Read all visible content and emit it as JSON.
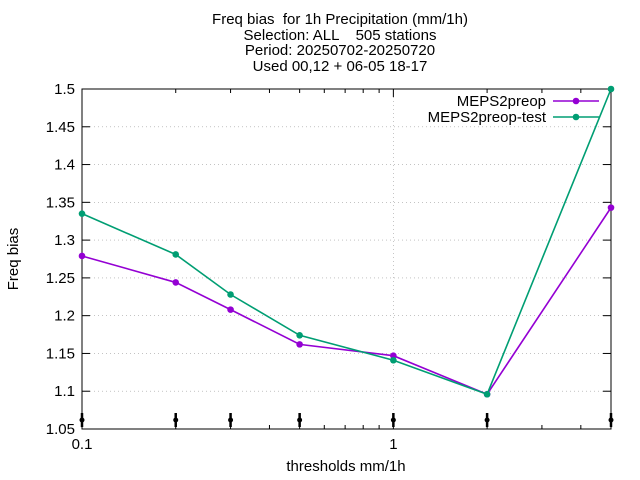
{
  "chart_data": {
    "type": "line",
    "title_lines": [
      "Freq bias  for 1h Precipitation (mm/1h)",
      "Selection: ALL    505 stations",
      "Period: 20250702-20250720",
      "Used 00,12 + 06-05 18-17"
    ],
    "xlabel": "thresholds mm/1h",
    "ylabel": "Freq bias",
    "x_scale": "log",
    "xlim": [
      0.1,
      5
    ],
    "ylim": [
      1.05,
      1.5
    ],
    "x_ticks": [
      0.1,
      1
    ],
    "x_tick_labels": [
      "0.1",
      "1"
    ],
    "y_ticks": [
      1.05,
      1.1,
      1.15,
      1.2,
      1.25,
      1.3,
      1.35,
      1.4,
      1.45,
      1.5
    ],
    "y_tick_labels": [
      "1.05",
      "1.1",
      "1.15",
      "1.2",
      "1.25",
      "1.3",
      "1.35",
      "1.4",
      "1.45",
      "1.5"
    ],
    "grid": "dotted",
    "legend_position": "top-right",
    "x": [
      0.1,
      0.2,
      0.3,
      0.5,
      1,
      2,
      5
    ],
    "series": [
      {
        "name": "MEPS2preop",
        "color": "#9400d3",
        "values": [
          1.279,
          1.244,
          1.208,
          1.162,
          1.147,
          1.096,
          1.343
        ]
      },
      {
        "name": "MEPS2preop-test",
        "color": "#009e73",
        "values": [
          1.335,
          1.281,
          1.228,
          1.174,
          1.141,
          1.096,
          1.5
        ]
      }
    ]
  }
}
